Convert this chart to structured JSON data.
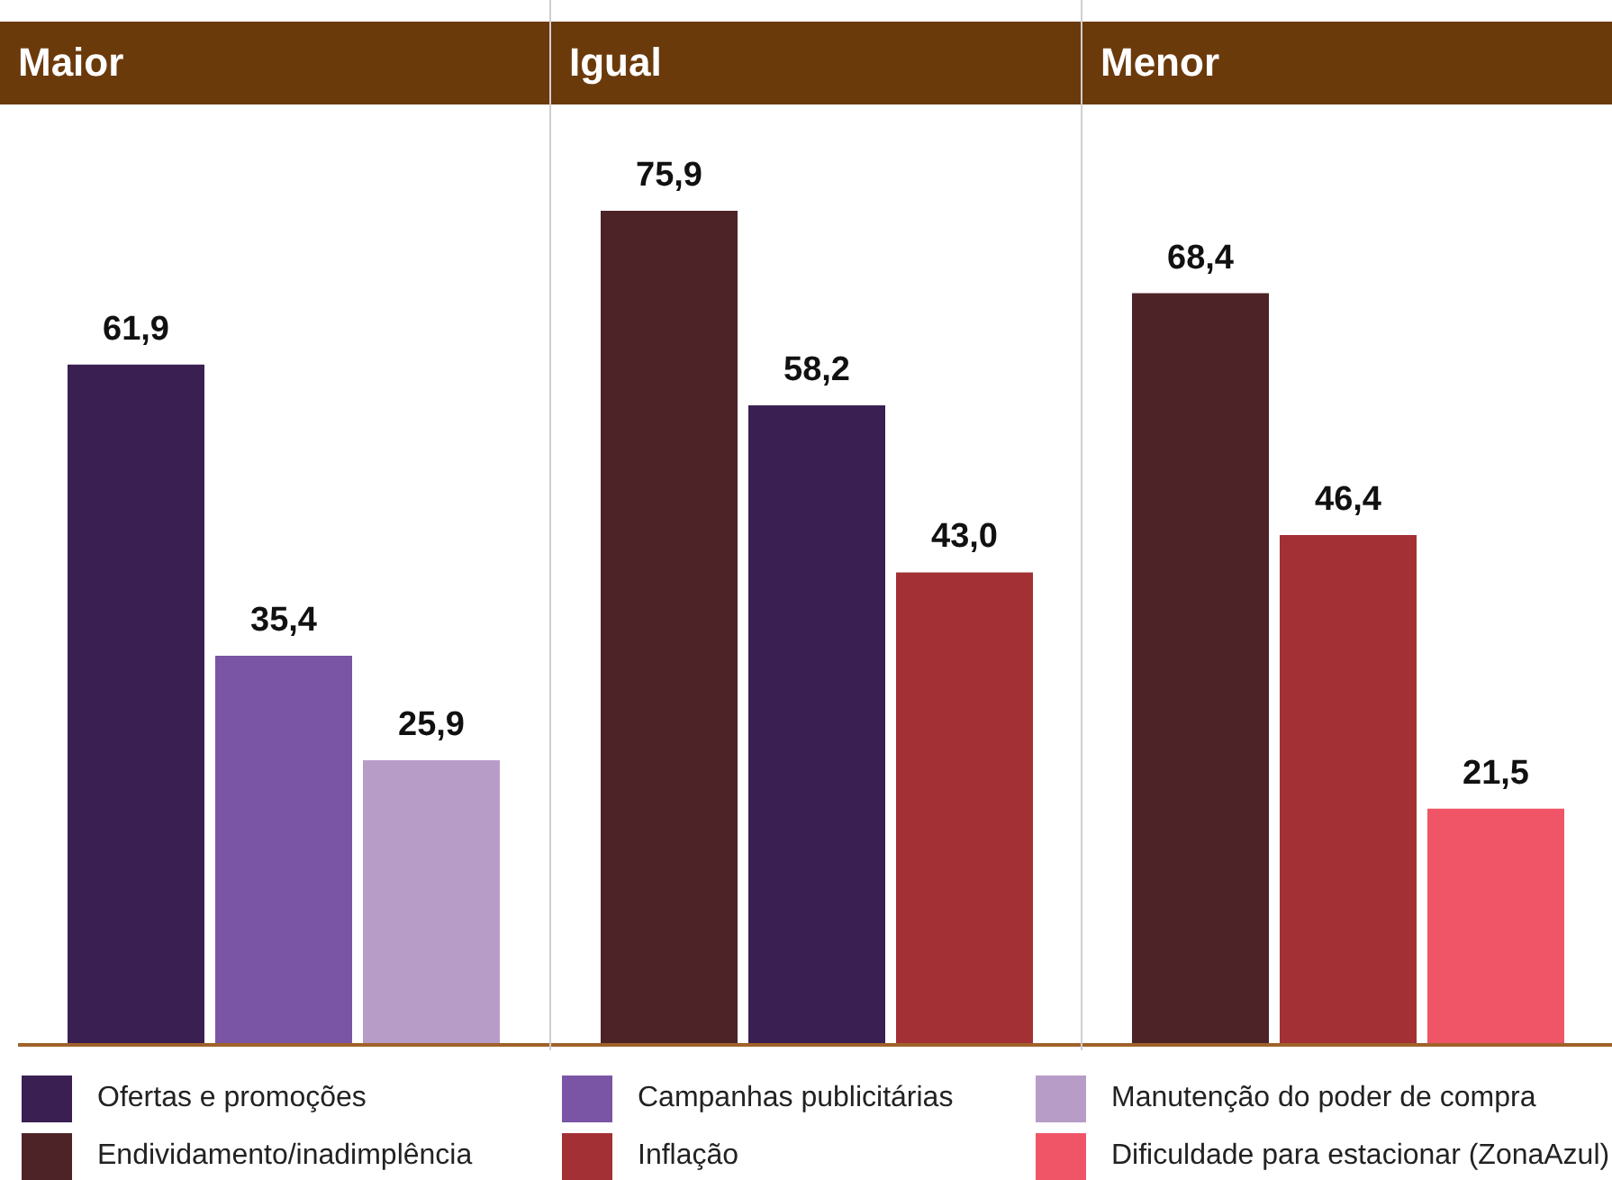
{
  "chart_data": [
    {
      "type": "bar",
      "title": "Maior",
      "categories": [
        null
      ],
      "legend": "bottom",
      "series": [
        {
          "name": "Ofertas e promoções",
          "color": "#3a1f52",
          "values": [
            61.9
          ],
          "value_labels": [
            "61,9"
          ]
        },
        {
          "name": "Campanhas publicitárias",
          "color": "#7a55a5",
          "values": [
            35.4
          ],
          "value_labels": [
            "35,4"
          ]
        },
        {
          "name": "Manutenção do poder de compra",
          "color": "#b89cc8",
          "values": [
            25.9
          ],
          "value_labels": [
            "25,9"
          ]
        }
      ]
    },
    {
      "type": "bar",
      "title": "Igual",
      "categories": [
        null
      ],
      "legend": "bottom",
      "series": [
        {
          "name": "Endividamento/inadimplência",
          "color": "#4e2328",
          "values": [
            75.9
          ],
          "value_labels": [
            "75,9"
          ]
        },
        {
          "color": "#3a1f52",
          "values": [
            58.2
          ],
          "value_labels": [
            "58,2"
          ]
        },
        {
          "name": "Inflação",
          "color": "#a33035",
          "values": [
            43.0
          ],
          "value_labels": [
            "43,0"
          ]
        }
      ]
    },
    {
      "type": "bar",
      "title": "Menor",
      "categories": [
        null
      ],
      "legend": "bottom",
      "series": [
        {
          "color": "#4e2328",
          "values": [
            68.4
          ],
          "value_labels": [
            "68,4"
          ]
        },
        {
          "color": "#a33035",
          "values": [
            46.4
          ],
          "value_labels": [
            "46,4"
          ]
        },
        {
          "name": "Dificuldade para estacionar (ZonaAzul)",
          "color": "#ef5566",
          "values": [
            21.5
          ],
          "value_labels": [
            "21,5"
          ]
        }
      ]
    }
  ]
}
